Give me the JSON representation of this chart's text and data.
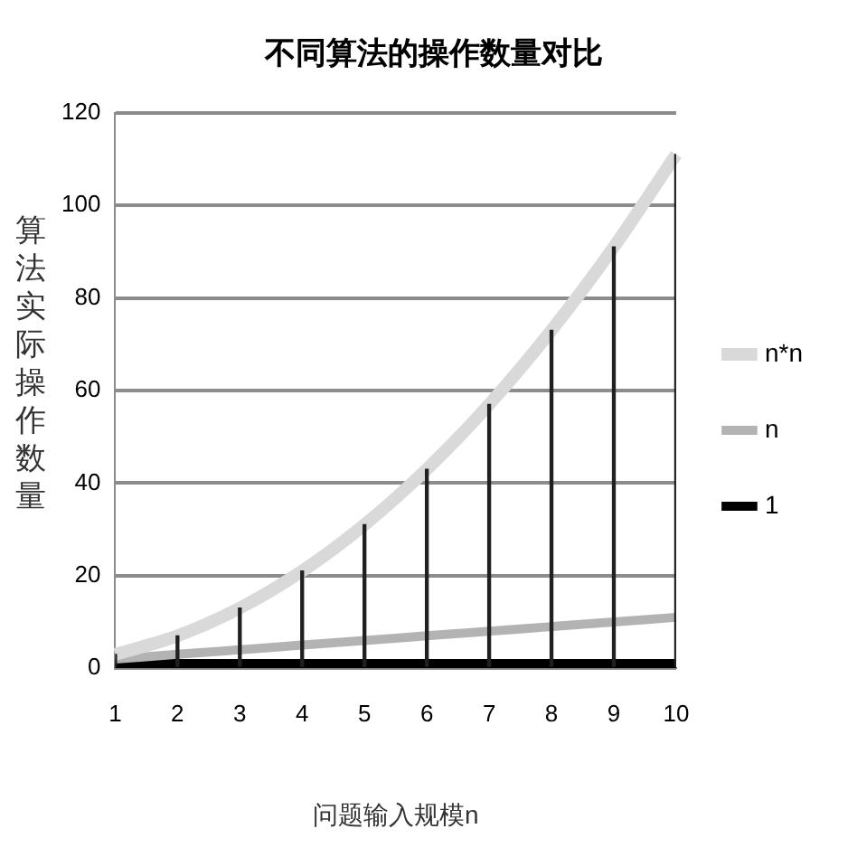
{
  "chart_data": {
    "type": "line",
    "title": "不同算法的操作数量对比",
    "xlabel": "问题输入规模n",
    "ylabel": "算法实际操作数量",
    "categories": [
      "1",
      "2",
      "3",
      "4",
      "5",
      "6",
      "7",
      "8",
      "9",
      "10"
    ],
    "series": [
      {
        "name": "n*n",
        "color": "#d9d9d9",
        "values": [
          3,
          7,
          13,
          21,
          31,
          43,
          57,
          73,
          91,
          111
        ]
      },
      {
        "name": "n",
        "color": "#b3b3b3",
        "values": [
          2,
          3,
          4,
          5,
          6,
          7,
          8,
          9,
          10,
          11
        ]
      },
      {
        "name": "1",
        "color": "#000000",
        "values": [
          1,
          1,
          1,
          1,
          1,
          1,
          1,
          1,
          1,
          1
        ]
      },
      {
        "type": "bar",
        "color": "#202020",
        "values": [
          3,
          7,
          13,
          21,
          31,
          43,
          57,
          73,
          91,
          111
        ]
      }
    ],
    "ylim": [
      0,
      120
    ],
    "yticks": [
      0,
      20,
      40,
      60,
      80,
      100,
      120
    ],
    "grid": "y",
    "legend": "right",
    "marker": "none"
  }
}
